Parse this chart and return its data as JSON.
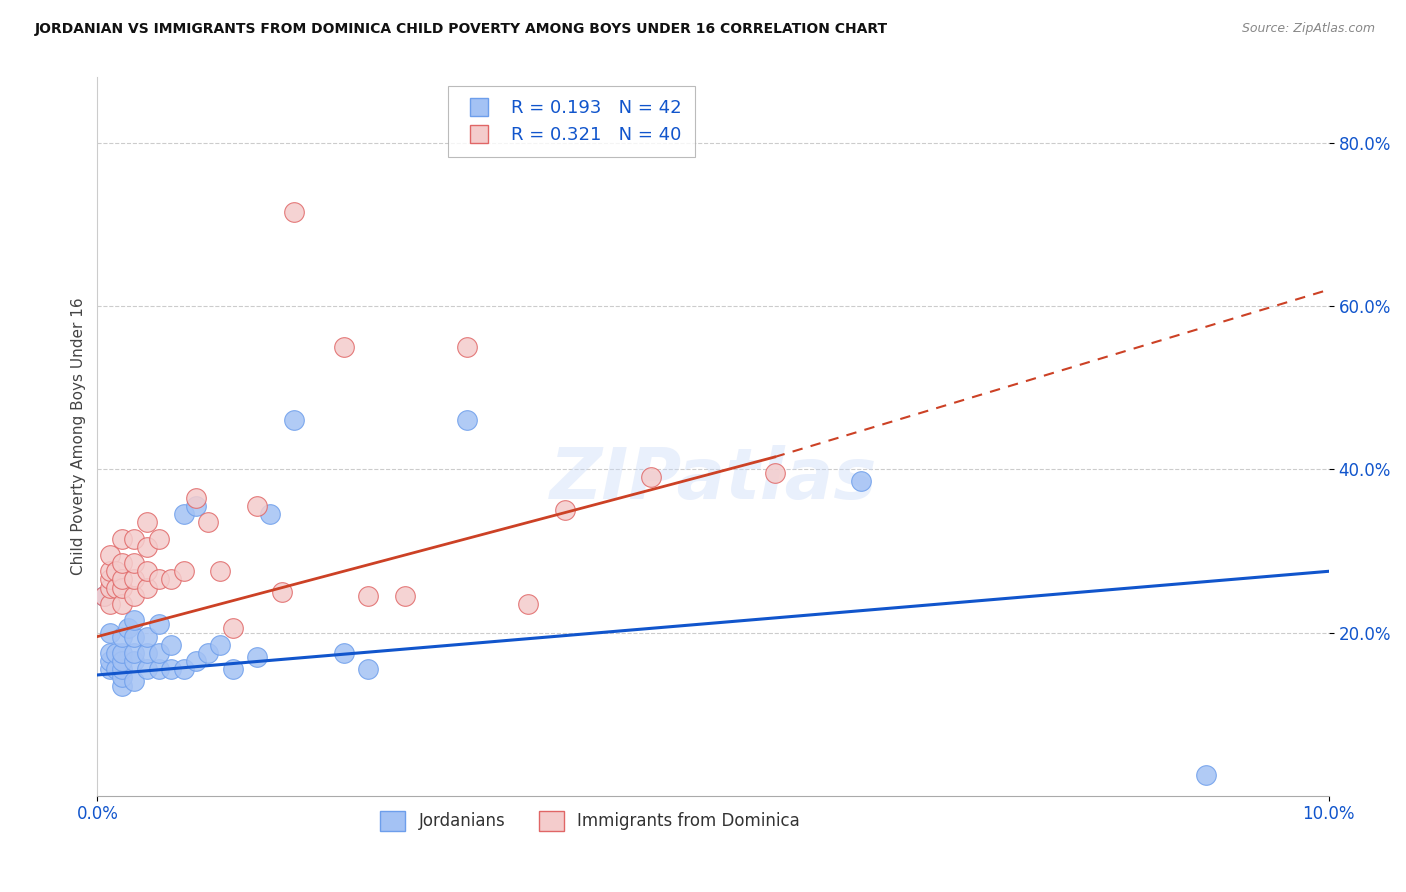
{
  "title": "JORDANIAN VS IMMIGRANTS FROM DOMINICA CHILD POVERTY AMONG BOYS UNDER 16 CORRELATION CHART",
  "source": "Source: ZipAtlas.com",
  "ylabel": "Child Poverty Among Boys Under 16",
  "legend_label_1": "Jordanians",
  "legend_label_2": "Immigrants from Dominica",
  "r1": 0.193,
  "n1": 42,
  "r2": 0.321,
  "n2": 40,
  "color1": "#a4c2f4",
  "color2": "#f4cccc",
  "edge_color1": "#6d9eeb",
  "edge_color2": "#e06666",
  "line_color1": "#1155cc",
  "line_color2": "#cc4125",
  "xlim": [
    0.0,
    0.1
  ],
  "ylim": [
    0.0,
    0.88
  ],
  "xticks": [
    0.0,
    0.1
  ],
  "yticks": [
    0.2,
    0.4,
    0.6,
    0.8
  ],
  "blue_line": [
    0.0,
    0.148,
    0.1,
    0.275
  ],
  "pink_solid_line": [
    0.0,
    0.195,
    0.055,
    0.415
  ],
  "pink_dashed_line": [
    0.055,
    0.415,
    0.1,
    0.62
  ],
  "scatter1_x": [
    0.0005,
    0.001,
    0.001,
    0.001,
    0.001,
    0.0015,
    0.0015,
    0.002,
    0.002,
    0.002,
    0.002,
    0.002,
    0.002,
    0.0025,
    0.003,
    0.003,
    0.003,
    0.003,
    0.003,
    0.004,
    0.004,
    0.004,
    0.005,
    0.005,
    0.005,
    0.006,
    0.006,
    0.007,
    0.007,
    0.008,
    0.008,
    0.009,
    0.01,
    0.011,
    0.013,
    0.014,
    0.016,
    0.02,
    0.022,
    0.03,
    0.062,
    0.09
  ],
  "scatter1_y": [
    0.245,
    0.155,
    0.165,
    0.175,
    0.2,
    0.155,
    0.175,
    0.135,
    0.145,
    0.155,
    0.165,
    0.175,
    0.195,
    0.205,
    0.14,
    0.165,
    0.175,
    0.195,
    0.215,
    0.155,
    0.175,
    0.195,
    0.155,
    0.175,
    0.21,
    0.155,
    0.185,
    0.155,
    0.345,
    0.165,
    0.355,
    0.175,
    0.185,
    0.155,
    0.17,
    0.345,
    0.46,
    0.175,
    0.155,
    0.46,
    0.385,
    0.025
  ],
  "scatter2_x": [
    0.0005,
    0.001,
    0.001,
    0.001,
    0.001,
    0.001,
    0.0015,
    0.0015,
    0.002,
    0.002,
    0.002,
    0.002,
    0.002,
    0.003,
    0.003,
    0.003,
    0.003,
    0.004,
    0.004,
    0.004,
    0.004,
    0.005,
    0.005,
    0.006,
    0.007,
    0.008,
    0.009,
    0.01,
    0.011,
    0.013,
    0.015,
    0.016,
    0.02,
    0.022,
    0.025,
    0.03,
    0.035,
    0.038,
    0.045,
    0.055
  ],
  "scatter2_y": [
    0.245,
    0.235,
    0.255,
    0.265,
    0.275,
    0.295,
    0.255,
    0.275,
    0.235,
    0.255,
    0.265,
    0.285,
    0.315,
    0.245,
    0.265,
    0.285,
    0.315,
    0.255,
    0.275,
    0.305,
    0.335,
    0.265,
    0.315,
    0.265,
    0.275,
    0.365,
    0.335,
    0.275,
    0.205,
    0.355,
    0.25,
    0.715,
    0.55,
    0.245,
    0.245,
    0.55,
    0.235,
    0.35,
    0.39,
    0.395
  ]
}
